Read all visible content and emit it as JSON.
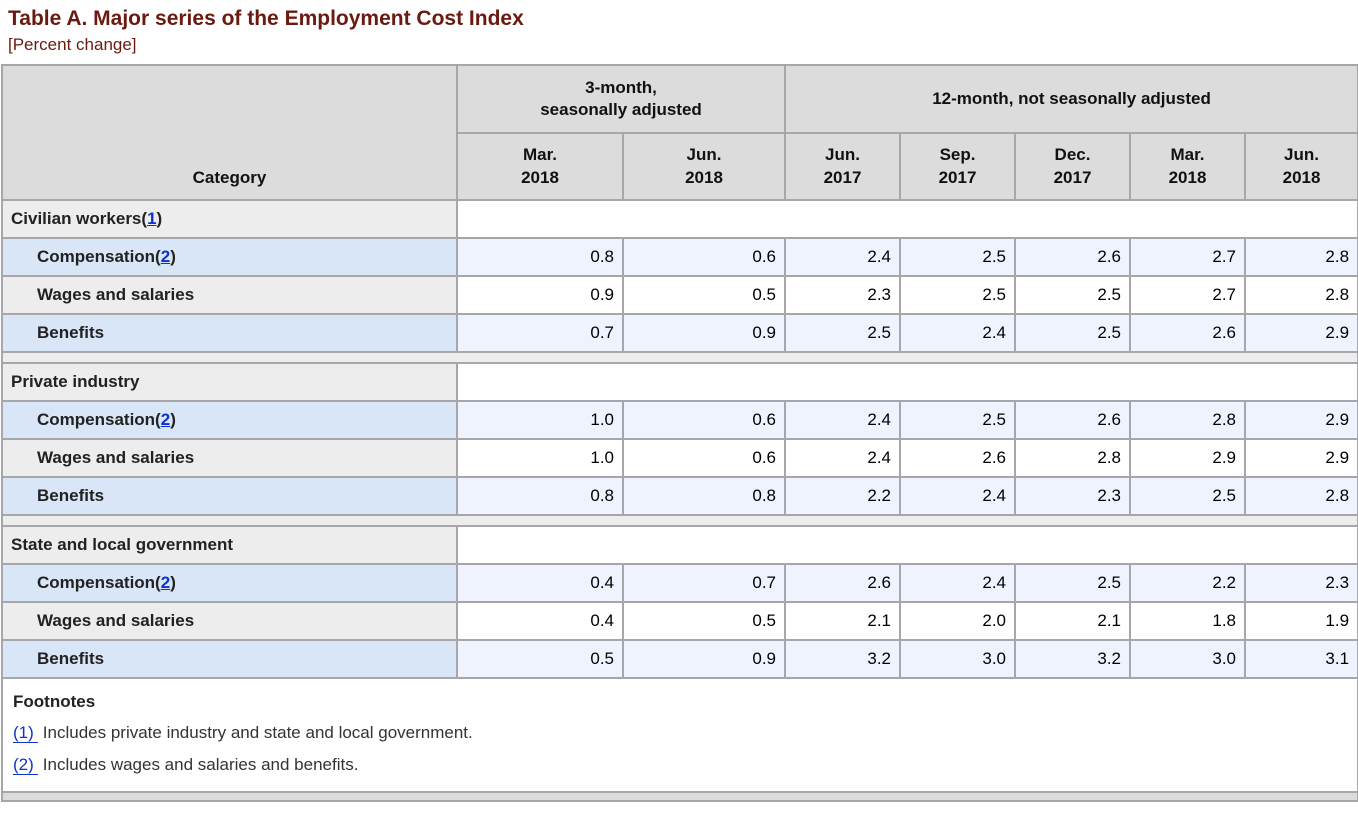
{
  "page": {
    "title": "Table A. Major series of the Employment Cost Index",
    "subtitle": "[Percent change]"
  },
  "colors": {
    "title_maroon": "#6a1a10",
    "link_blue": "#0c33cc",
    "header_bg": "#dcdcdc",
    "gray_row_bg": "#ededee",
    "blue_category_bg": "#d9e6f8",
    "blue_data_bg": "#eef3fd",
    "border_gray": "#a7a7ab"
  },
  "table": {
    "category_header": "Category",
    "col_groups": [
      {
        "label": "3-month,\nseasonally adjusted",
        "span": 2
      },
      {
        "label": "12-month, not seasonally adjusted",
        "span": 5
      }
    ],
    "columns": [
      "Mar.\n2018",
      "Jun.\n2018",
      "Jun.\n2017",
      "Sep.\n2017",
      "Dec.\n2017",
      "Mar.\n2018",
      "Jun.\n2018"
    ],
    "groups": [
      {
        "header": {
          "prefix": "Civilian workers(",
          "footnote_link": "1",
          "suffix": ")"
        },
        "rows": [
          {
            "prefix": "Compensation(",
            "footnote_link": "2",
            "suffix": ")",
            "values": [
              "0.8",
              "0.6",
              "2.4",
              "2.5",
              "2.6",
              "2.7",
              "2.8"
            ]
          },
          {
            "prefix": "Wages and salaries",
            "values": [
              "0.9",
              "0.5",
              "2.3",
              "2.5",
              "2.5",
              "2.7",
              "2.8"
            ]
          },
          {
            "prefix": "Benefits",
            "values": [
              "0.7",
              "0.9",
              "2.5",
              "2.4",
              "2.5",
              "2.6",
              "2.9"
            ]
          }
        ]
      },
      {
        "header": {
          "prefix": "Private industry"
        },
        "rows": [
          {
            "prefix": "Compensation(",
            "footnote_link": "2",
            "suffix": ")",
            "values": [
              "1.0",
              "0.6",
              "2.4",
              "2.5",
              "2.6",
              "2.8",
              "2.9"
            ]
          },
          {
            "prefix": "Wages and salaries",
            "values": [
              "1.0",
              "0.6",
              "2.4",
              "2.6",
              "2.8",
              "2.9",
              "2.9"
            ]
          },
          {
            "prefix": "Benefits",
            "values": [
              "0.8",
              "0.8",
              "2.2",
              "2.4",
              "2.3",
              "2.5",
              "2.8"
            ]
          }
        ]
      },
      {
        "header": {
          "prefix": "State and local government"
        },
        "rows": [
          {
            "prefix": "Compensation(",
            "footnote_link": "2",
            "suffix": ")",
            "values": [
              "0.4",
              "0.7",
              "2.6",
              "2.4",
              "2.5",
              "2.2",
              "2.3"
            ]
          },
          {
            "prefix": "Wages and salaries",
            "values": [
              "0.4",
              "0.5",
              "2.1",
              "2.0",
              "2.1",
              "1.8",
              "1.9"
            ]
          },
          {
            "prefix": "Benefits",
            "values": [
              "0.5",
              "0.9",
              "3.2",
              "3.0",
              "3.2",
              "3.0",
              "3.1"
            ]
          }
        ]
      }
    ]
  },
  "footnotes": {
    "heading": "Footnotes",
    "items": [
      {
        "marker": "(1)",
        "text": "Includes private industry and state and local government."
      },
      {
        "marker": "(2)",
        "text": "Includes wages and salaries and benefits."
      }
    ]
  }
}
